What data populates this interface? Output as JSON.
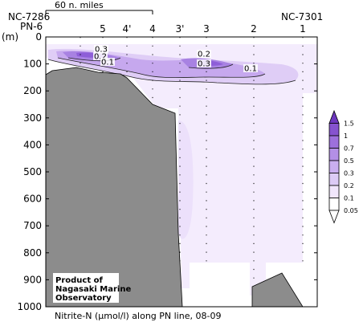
{
  "chart_data": {
    "type": "heatmap",
    "title": "",
    "caption": "Nitrite-N (μmol/l) along PN line, 08-09",
    "xlabel": "",
    "ylabel": "(m)",
    "ylim": [
      1000,
      0
    ],
    "y_ticks": [
      0,
      100,
      200,
      300,
      400,
      500,
      600,
      700,
      800,
      900,
      1000
    ],
    "scale_bar_label": "60 n. miles",
    "endpoint_labels": {
      "left_top": "NC-7286",
      "left_bottom": "PN-6",
      "right": "NC-7301"
    },
    "stations": [
      "5",
      "4'",
      "4",
      "3'",
      "3",
      "2",
      "1"
    ],
    "colorbar": {
      "levels": [
        0.05,
        0.1,
        0.2,
        0.3,
        0.5,
        0.7,
        1.0,
        1.5
      ],
      "labels": [
        "0.05",
        "0.1",
        "0.2",
        "0.3",
        "0.5",
        "0.7",
        "1",
        "1.5"
      ],
      "colors": [
        "#ffffff",
        "#f0e6fb",
        "#dccbf5",
        "#c9aeef",
        "#b38fe6",
        "#9d70dc",
        "#8653cf",
        "#6d37bf"
      ]
    },
    "contour_labels": [
      "0.3",
      "0.2",
      "0.1",
      "0.2",
      "0.3",
      "0.1"
    ],
    "annotation": [
      "Product of",
      "Nagasaki Marine",
      "Observatory"
    ]
  }
}
